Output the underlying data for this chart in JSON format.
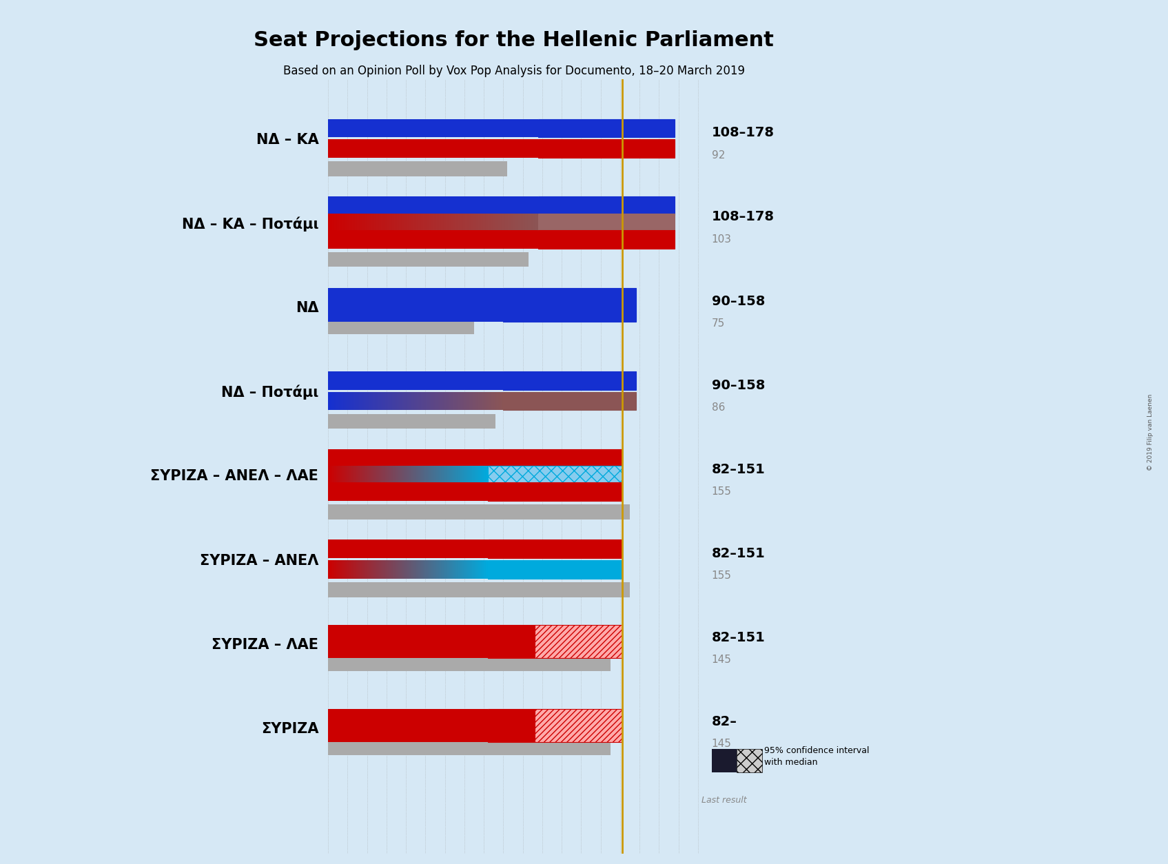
{
  "title": "Seat Projections for the Hellenic Parliament",
  "subtitle": "Based on an Opinion Poll by Vox Pop Analysis for Documento, 18–20 March 2019",
  "copyright": "© 2019 Filip van Laenen",
  "background_color": "#d6e8f5",
  "fig_width": 16.95,
  "fig_height": 12.54,
  "dpi": 100,
  "xlim_seats": 200,
  "majority_line": 151,
  "coalitions": [
    {
      "label": "ΝΔ – ΚΑ",
      "range_label": "108–178",
      "last_result": 92,
      "ci_low": 108,
      "ci_high": 178,
      "median": 143,
      "bar_type": "blue_red",
      "underline": false
    },
    {
      "label": "ΝΔ – ΚΑ – Ποτάμι",
      "range_label": "108–178",
      "last_result": 103,
      "ci_low": 108,
      "ci_high": 178,
      "median": 147,
      "bar_type": "blue_red_brown",
      "underline": false
    },
    {
      "label": "ΝΔ",
      "range_label": "90–158",
      "last_result": 75,
      "ci_low": 90,
      "ci_high": 158,
      "median": 124,
      "bar_type": "blue",
      "underline": false
    },
    {
      "label": "ΝΔ – Ποτάμι",
      "range_label": "90–158",
      "last_result": 86,
      "ci_low": 90,
      "ci_high": 158,
      "median": 124,
      "bar_type": "blue_brown",
      "underline": false
    },
    {
      "label": "ΣΥΡΙΖΑ – ΑΝΕΛ – ΛΑΕ",
      "range_label": "82–151",
      "last_result": 155,
      "ci_low": 82,
      "ci_high": 151,
      "median": 116,
      "bar_type": "red_cyan_red",
      "underline": false
    },
    {
      "label": "ΣΥΡΙΖΑ – ΑΝΕΛ",
      "range_label": "82–151",
      "last_result": 155,
      "ci_low": 82,
      "ci_high": 151,
      "median": 116,
      "bar_type": "red_cyan",
      "underline": false
    },
    {
      "label": "ΣΥΡΙΖΑ – ΛΑΕ",
      "range_label": "82–151",
      "last_result": 145,
      "ci_low": 82,
      "ci_high": 151,
      "median": 116,
      "bar_type": "red",
      "underline": false
    },
    {
      "label": "ΣΥΡΙΖΑ",
      "range_label": "82–",
      "last_result": 145,
      "ci_low": 82,
      "ci_high": 151,
      "median": 116,
      "bar_type": "red",
      "underline": true
    }
  ],
  "colors": {
    "blue": "#1530d0",
    "red": "#cc0000",
    "cyan": "#00aadd",
    "brown": "#8b5555",
    "gray": "#aaaaaa",
    "gold": "#cc9900",
    "dark_navy": "#1a1a2e",
    "bg": "#d6e8f5"
  }
}
